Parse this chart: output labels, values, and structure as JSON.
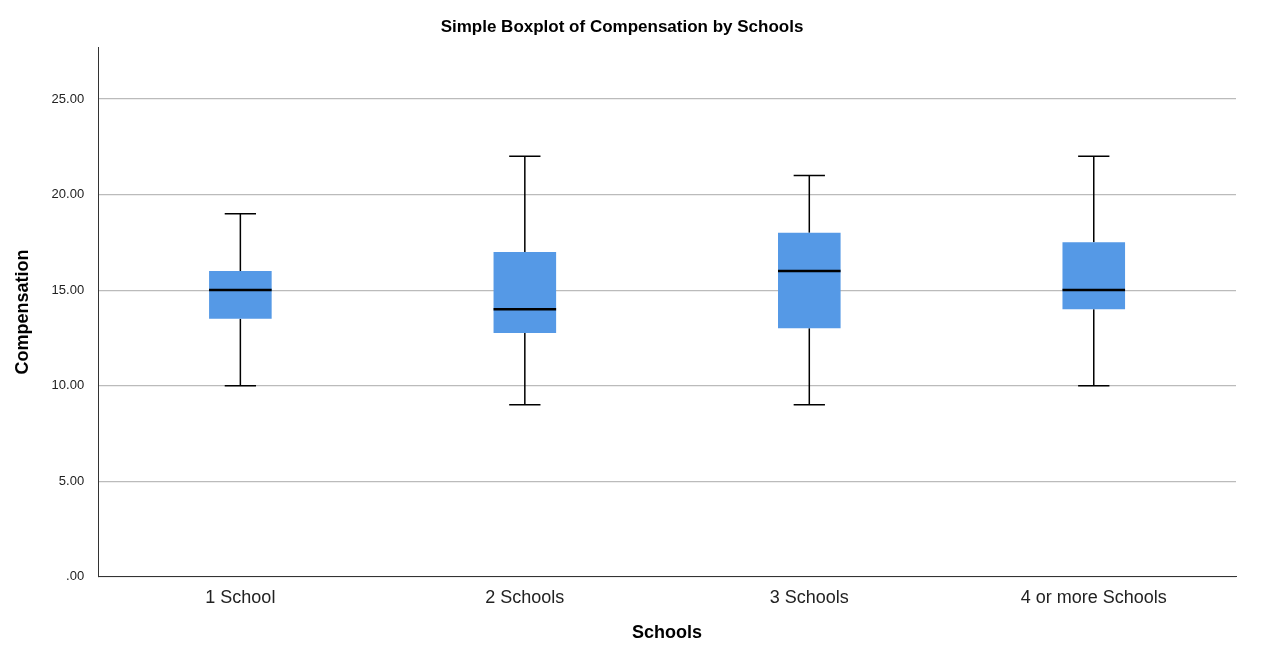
{
  "chart_data": {
    "type": "box",
    "title": "Simple Boxplot of Compensation by Schools",
    "xlabel": "Schools",
    "ylabel": "Compensation",
    "categories": [
      "1 School",
      "2 Schools",
      "3 Schools",
      "4 or more Schools"
    ],
    "color": "#5599e6",
    "boxes": [
      {
        "low": 10,
        "q1": 13.5,
        "median": 15,
        "q3": 16,
        "high": 19
      },
      {
        "low": 9,
        "q1": 12.75,
        "median": 14,
        "q3": 17,
        "high": 22
      },
      {
        "low": 9,
        "q1": 13,
        "median": 16,
        "q3": 18,
        "high": 21
      },
      {
        "low": 10,
        "q1": 14,
        "median": 15,
        "q3": 17.5,
        "high": 22
      }
    ],
    "ylim": [
      0,
      27.7
    ],
    "yticks": [
      {
        "value": 0,
        "label": ".00"
      },
      {
        "value": 5,
        "label": "5.00"
      },
      {
        "value": 10,
        "label": "10.00"
      },
      {
        "value": 15,
        "label": "15.00"
      },
      {
        "value": 20,
        "label": "20.00"
      },
      {
        "value": 25,
        "label": "25.00"
      }
    ],
    "grid": "y"
  }
}
